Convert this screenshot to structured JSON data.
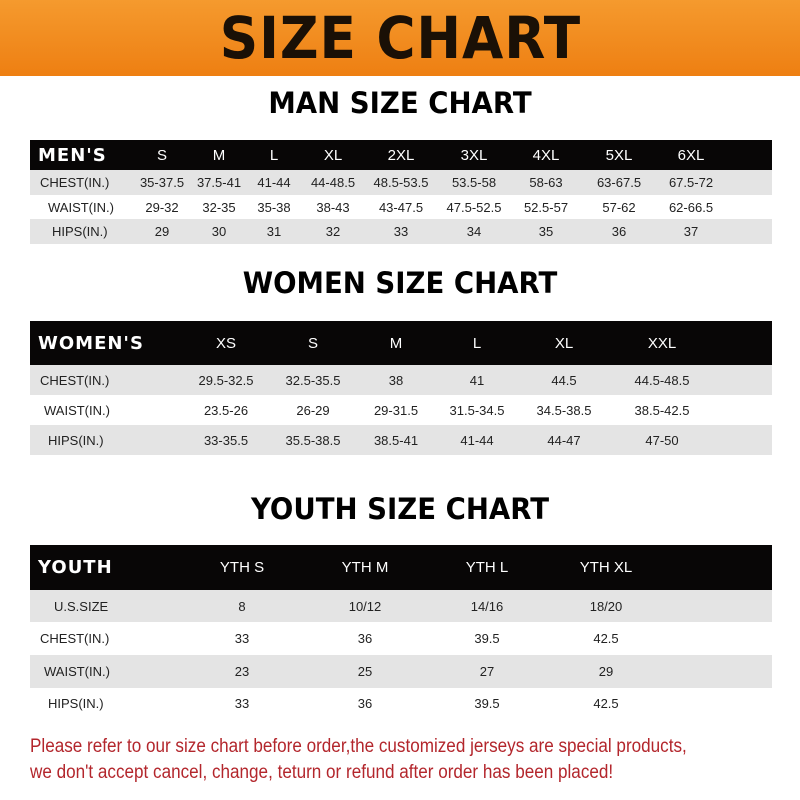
{
  "banner_title": "SIZE CHART",
  "men": {
    "title": "MAN SIZE CHART",
    "header_label": "MEN'S",
    "sizes": [
      "S",
      "M",
      "L",
      "XL",
      "2XL",
      "3XL",
      "4XL",
      "5XL",
      "6XL"
    ],
    "rows": [
      {
        "label": "CHEST(IN.)",
        "values": [
          "35-37.5",
          "37.5-41",
          "41-44",
          "44-48.5",
          "48.5-53.5",
          "53.5-58",
          "58-63",
          "63-67.5",
          "67.5-72"
        ]
      },
      {
        "label": "WAIST(IN.)",
        "values": [
          "29-32",
          "32-35",
          "35-38",
          "38-43",
          "43-47.5",
          "47.5-52.5",
          "52.5-57",
          "57-62",
          "62-66.5"
        ]
      },
      {
        "label": "HIPS(IN.)",
        "values": [
          "29",
          "30",
          "31",
          "32",
          "33",
          "34",
          "35",
          "36",
          "37"
        ]
      }
    ]
  },
  "women": {
    "title": "WOMEN SIZE CHART",
    "header_label": "WOMEN'S",
    "sizes": [
      "XS",
      "S",
      "M",
      "L",
      "XL",
      "XXL"
    ],
    "rows": [
      {
        "label": "CHEST(IN.)",
        "values": [
          "29.5-32.5",
          "32.5-35.5",
          "38",
          "41",
          "44.5",
          "44.5-48.5"
        ]
      },
      {
        "label": "WAIST(IN.)",
        "values": [
          "23.5-26",
          "26-29",
          "29-31.5",
          "31.5-34.5",
          "34.5-38.5",
          "38.5-42.5"
        ]
      },
      {
        "label": "HIPS(IN.)",
        "values": [
          "33-35.5",
          "35.5-38.5",
          "38.5-41",
          "41-44",
          "44-47",
          "47-50"
        ]
      }
    ]
  },
  "youth": {
    "title": "YOUTH SIZE CHART",
    "header_label": "YOUTH",
    "sizes": [
      "YTH S",
      "YTH M",
      "YTH L",
      "YTH XL"
    ],
    "rows": [
      {
        "label": "U.S.SIZE",
        "values": [
          "8",
          "10/12",
          "14/16",
          "18/20"
        ]
      },
      {
        "label": "CHEST(IN.)",
        "values": [
          "33",
          "36",
          "39.5",
          "42.5"
        ]
      },
      {
        "label": "WAIST(IN.)",
        "values": [
          "23",
          "25",
          "27",
          "29"
        ]
      },
      {
        "label": "HIPS(IN.)",
        "values": [
          "33",
          "36",
          "39.5",
          "42.5"
        ]
      }
    ]
  },
  "note_line1": "Please refer to our size chart before order,the customized jerseys are special products,",
  "note_line2": "we don't accept cancel, change, teturn or refund after order has been placed!",
  "colors": {
    "banner": "#ef8a1e",
    "header": "#080606",
    "row_gray": "#e4e4e4",
    "note": "#b3262c"
  }
}
